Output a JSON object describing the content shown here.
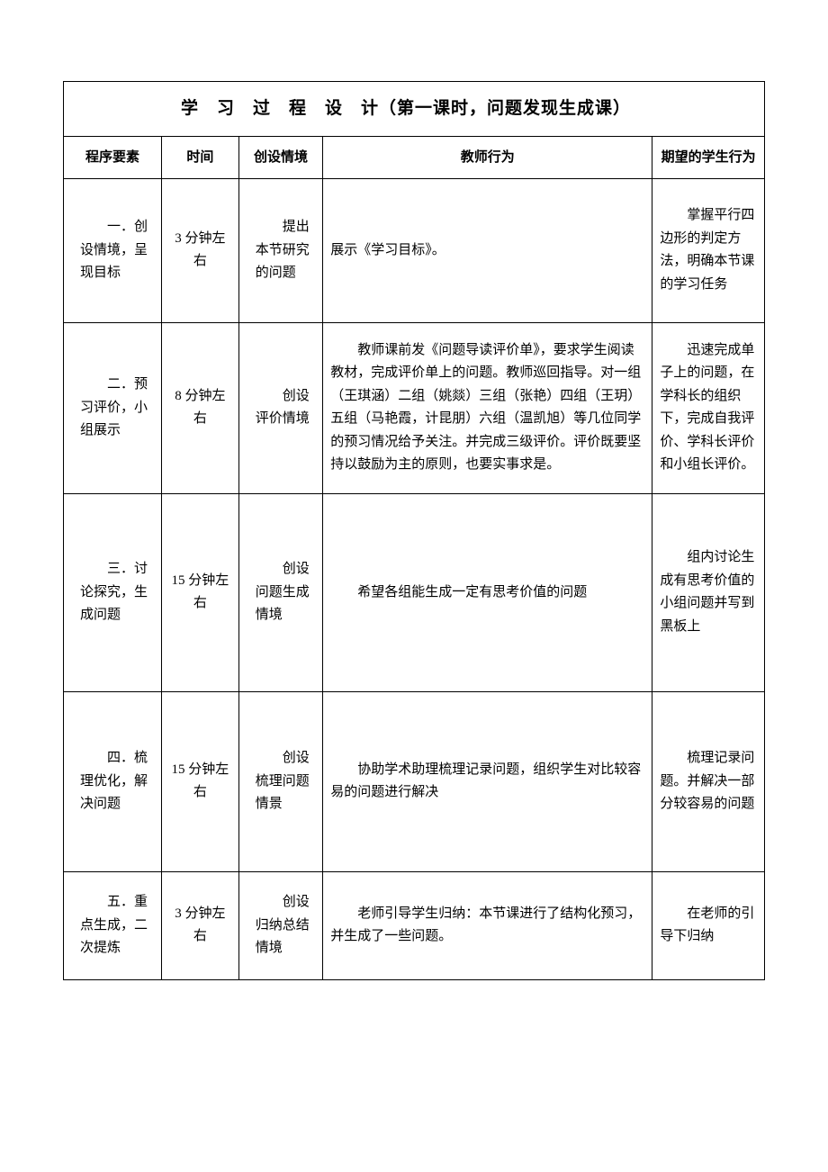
{
  "title": "学　习　过　程　设　计（第一课时，问题发现生成课）",
  "headers": {
    "program": "程序要素",
    "time": "时间",
    "context": "创设情境",
    "teacher": "教师行为",
    "expect": "期望的学生行为"
  },
  "rows": [
    {
      "program": "一．创设情境，呈现目标",
      "time": "3 分钟左右",
      "context": "提出本节研究的问题",
      "teacher": "展示《学习目标》。",
      "expect": "掌握平行四边形的判定方法，明确本节课的学习任务"
    },
    {
      "program": "二．预习评价，小组展示",
      "time": "8 分钟左右",
      "context": "创设评价情境",
      "teacher": "教师课前发《问题导读评价单》，要求学生阅读教材，完成评价单上的问题。教师巡回指导。对一组（王琪涵）二组（姚燚）三组（张艳）四组（王玥）五组（马艳霞，计昆朋）六组（温凯旭）等几位同学的预习情况给予关注。并完成三级评价。评价既要坚持以鼓励为主的原则，也要实事求是。",
      "expect": "迅速完成单子上的问题，在学科长的组织下，完成自我评价、学科长评价和小组长评价。"
    },
    {
      "program": "三．讨论探究，生成问题",
      "time": "15 分钟左右",
      "context": "创设问题生成情境",
      "teacher": "希望各组能生成一定有思考价值的问题",
      "expect": "组内讨论生成有思考价值的小组问题并写到黑板上"
    },
    {
      "program": "四．梳理优化，解决问题",
      "time": "15 分钟左右",
      "context": "创设梳理问题情景",
      "teacher": "协助学术助理梳理记录问题，组织学生对比较容易的问题进行解决",
      "expect": "梳理记录问题。并解决一部分较容易的问题"
    },
    {
      "program": "五．重点生成，二次提炼",
      "time": "3 分钟左右",
      "context": "创设归纳总结情境",
      "teacher": "老师引导学生归纳：本节课进行了结构化预习，并生成了一些问题。",
      "expect": "在老师的引导下归纳"
    }
  ],
  "colwidths": {
    "program": "14%",
    "time": "11%",
    "context": "12%",
    "teacher": "47%",
    "expect": "16%"
  }
}
